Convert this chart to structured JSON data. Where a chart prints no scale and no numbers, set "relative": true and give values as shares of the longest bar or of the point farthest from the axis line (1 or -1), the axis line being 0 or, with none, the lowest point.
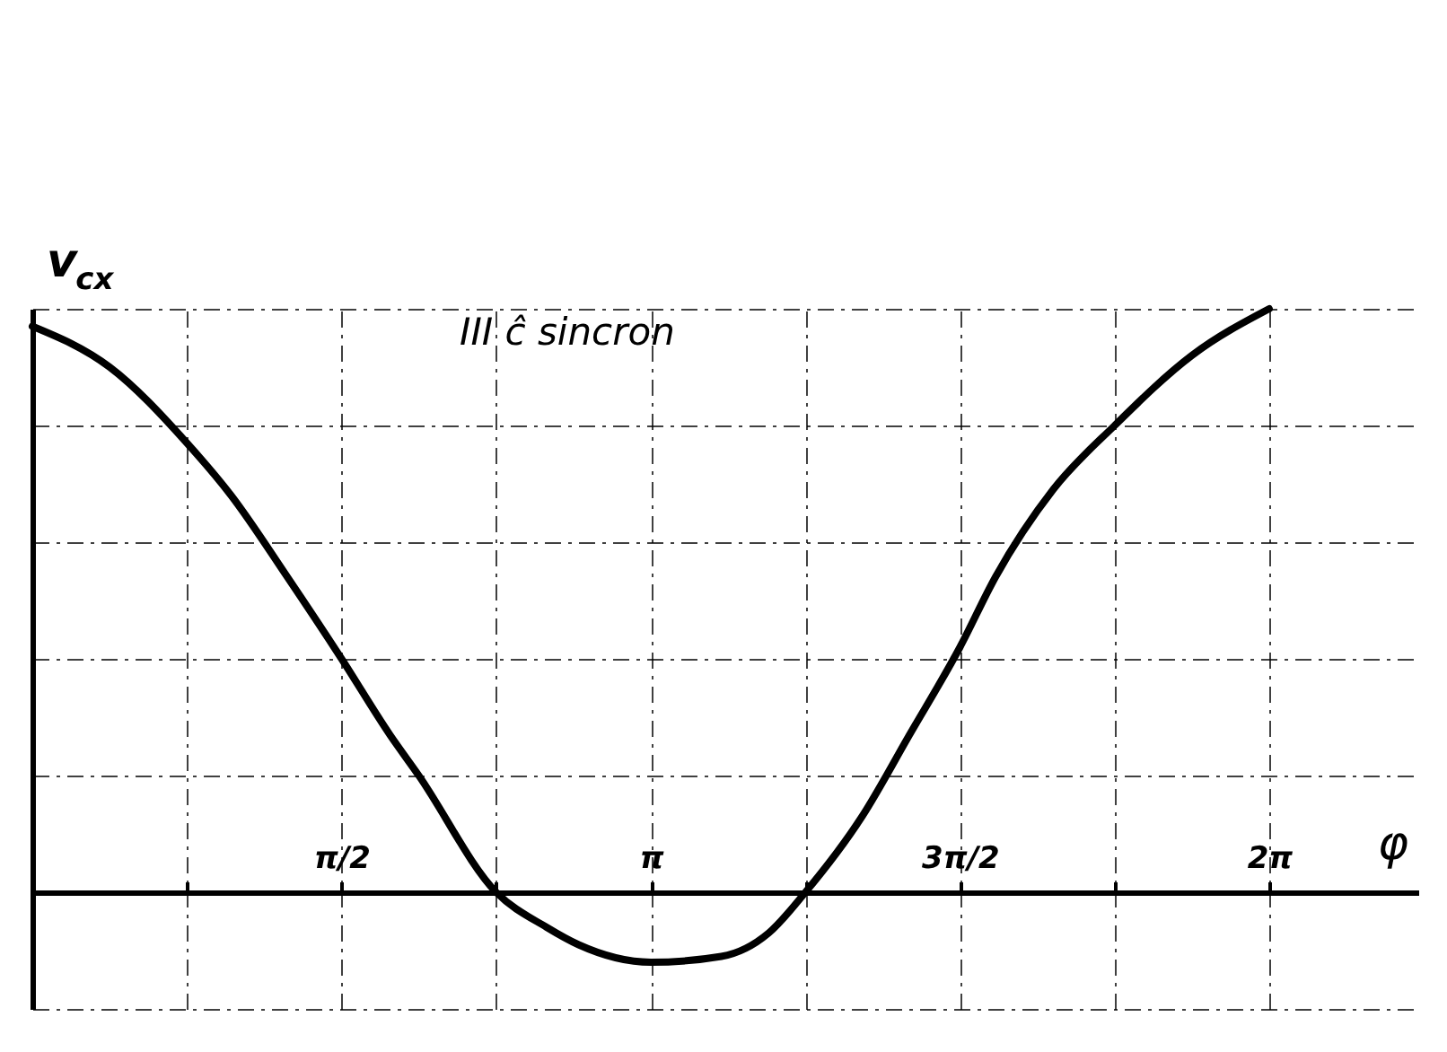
{
  "chart_data": {
    "type": "line",
    "ylabel": "v$_{cx}$",
    "xlabel": "φ",
    "annotations": [
      "III ĉ sincron"
    ],
    "x": [
      0,
      0.393,
      0.785,
      1.01,
      1.296,
      1.571,
      1.816,
      1.963,
      2.356,
      2.612,
      2.775,
      3.142,
      3.5,
      3.74,
      3.927,
      4.215,
      4.456,
      4.712,
      4.892,
      5.185,
      5.498,
      5.89,
      6.283
    ],
    "series": [
      {
        "color": "#000000",
        "values": [
          0.97,
          0.9,
          0.77,
          0.68,
          0.54,
          0.4,
          0.27,
          0.2,
          0,
          -0.06,
          -0.09,
          -0.12,
          -0.11,
          -0.07,
          0,
          0.13,
          0.27,
          0.42,
          0.54,
          0.69,
          0.8,
          0.92,
          1.0
        ]
      }
    ],
    "relative": true,
    "xlim": [
      0,
      7.04
    ],
    "xticks": [
      {
        "value": 0.785,
        "label": null
      },
      {
        "value": 1.571,
        "label": "π/2"
      },
      {
        "value": 2.356,
        "label": null
      },
      {
        "value": 3.142,
        "label": "π"
      },
      {
        "value": 3.927,
        "label": null
      },
      {
        "value": 4.712,
        "label": "3π/2"
      },
      {
        "value": 5.498,
        "label": null
      },
      {
        "value": 6.283,
        "label": "2π"
      }
    ],
    "grid": true,
    "marker": "none",
    "line_style": "solid"
  }
}
